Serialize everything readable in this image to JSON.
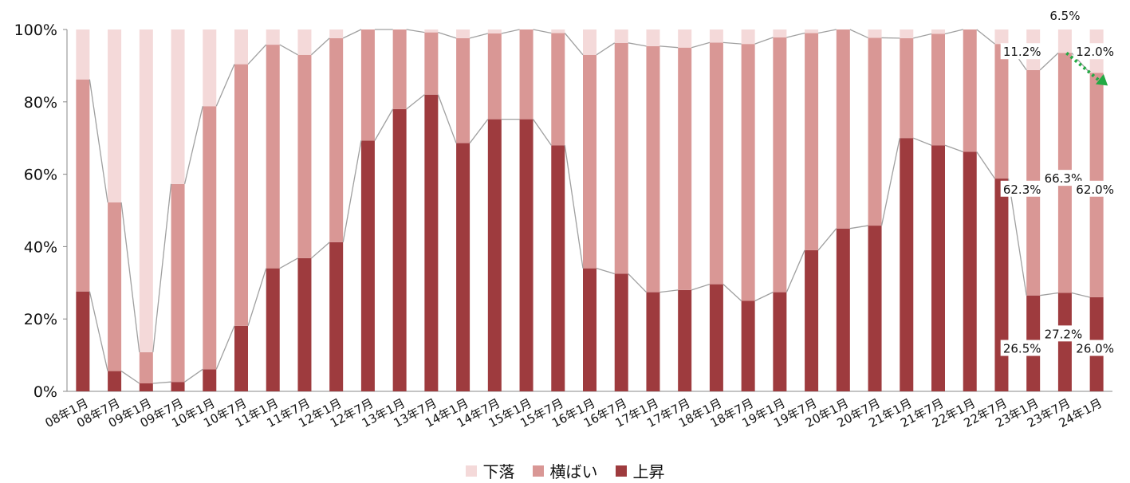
{
  "chart_data": {
    "type": "bar",
    "stacked": true,
    "percent": true,
    "categories": [
      "08年1月",
      "08年7月",
      "09年1月",
      "09年7月",
      "10年1月",
      "10年7月",
      "11年1月",
      "11年7月",
      "12年1月",
      "12年7月",
      "13年1月",
      "13年7月",
      "14年1月",
      "14年7月",
      "15年1月",
      "15年7月",
      "16年1月",
      "16年7月",
      "17年1月",
      "17年7月",
      "18年1月",
      "18年7月",
      "19年1月",
      "19年7月",
      "20年1月",
      "20年7月",
      "21年1月",
      "21年7月",
      "22年1月",
      "22年7月",
      "23年1月",
      "23年7月",
      "24年1月"
    ],
    "series": [
      {
        "name": "上昇",
        "color": "#9e3b3e",
        "values": [
          27.6,
          5.6,
          2.2,
          2.6,
          6.1,
          18.1,
          34.0,
          36.8,
          41.2,
          69.3,
          78.0,
          82.0,
          68.6,
          75.2,
          75.2,
          68.0,
          34.0,
          32.5,
          27.4,
          28.0,
          29.6,
          25.0,
          27.4,
          39.0,
          45.0,
          45.8,
          70.0,
          68.0,
          66.2,
          58.8,
          26.5,
          27.2,
          26.0
        ]
      },
      {
        "name": "横ばい",
        "color": "#d99795",
        "values": [
          58.6,
          46.6,
          8.6,
          54.7,
          72.7,
          72.3,
          61.8,
          56.2,
          56.4,
          30.7,
          22.0,
          17.2,
          29.0,
          23.7,
          24.8,
          31.0,
          59.0,
          63.8,
          68.0,
          67.0,
          66.8,
          71.0,
          70.4,
          60.0,
          55.0,
          51.9,
          27.6,
          30.8,
          33.8,
          37.2,
          62.3,
          66.3,
          62.0
        ]
      },
      {
        "name": "下落",
        "color": "#f4d9d9",
        "values": [
          13.8,
          47.8,
          89.2,
          42.7,
          21.2,
          9.6,
          4.2,
          7.0,
          2.4,
          0.0,
          0.0,
          0.8,
          2.4,
          1.1,
          0.0,
          1.0,
          7.0,
          3.7,
          4.6,
          5.0,
          3.6,
          4.0,
          2.2,
          1.0,
          0.0,
          2.3,
          2.4,
          1.2,
          0.0,
          4.0,
          11.2,
          6.5,
          12.0
        ]
      }
    ],
    "y_ticks": [
      "0%",
      "20%",
      "40%",
      "60%",
      "80%",
      "100%"
    ],
    "ylim": [
      0,
      100
    ],
    "grid": false,
    "legend_position": "bottom",
    "data_labels": [
      {
        "category": "23年1月",
        "series": "上昇",
        "text": "26.5%"
      },
      {
        "category": "23年1月",
        "series": "横ばい",
        "text": "62.3%"
      },
      {
        "category": "23年1月",
        "series": "下落",
        "text": "11.2%"
      },
      {
        "category": "23年7月",
        "series": "上昇",
        "text": "27.2%"
      },
      {
        "category": "23年7月",
        "series": "横ばい",
        "text": "66.3%"
      },
      {
        "category": "23年7月",
        "series": "下落",
        "text": "6.5%"
      },
      {
        "category": "24年1月",
        "series": "上昇",
        "text": "26.0%"
      },
      {
        "category": "24年1月",
        "series": "横ばい",
        "text": "62.0%"
      },
      {
        "category": "24年1月",
        "series": "下落",
        "text": "12.0%"
      }
    ],
    "annotation": {
      "type": "dotted-arrow",
      "color": "#22aa44",
      "from_category": "23年7月",
      "to_category": "24年1月"
    }
  },
  "legend": [
    {
      "label": "下落",
      "color": "#f4d9d9"
    },
    {
      "label": "横ばい",
      "color": "#d99795"
    },
    {
      "label": "上昇",
      "color": "#9e3b3e"
    }
  ]
}
